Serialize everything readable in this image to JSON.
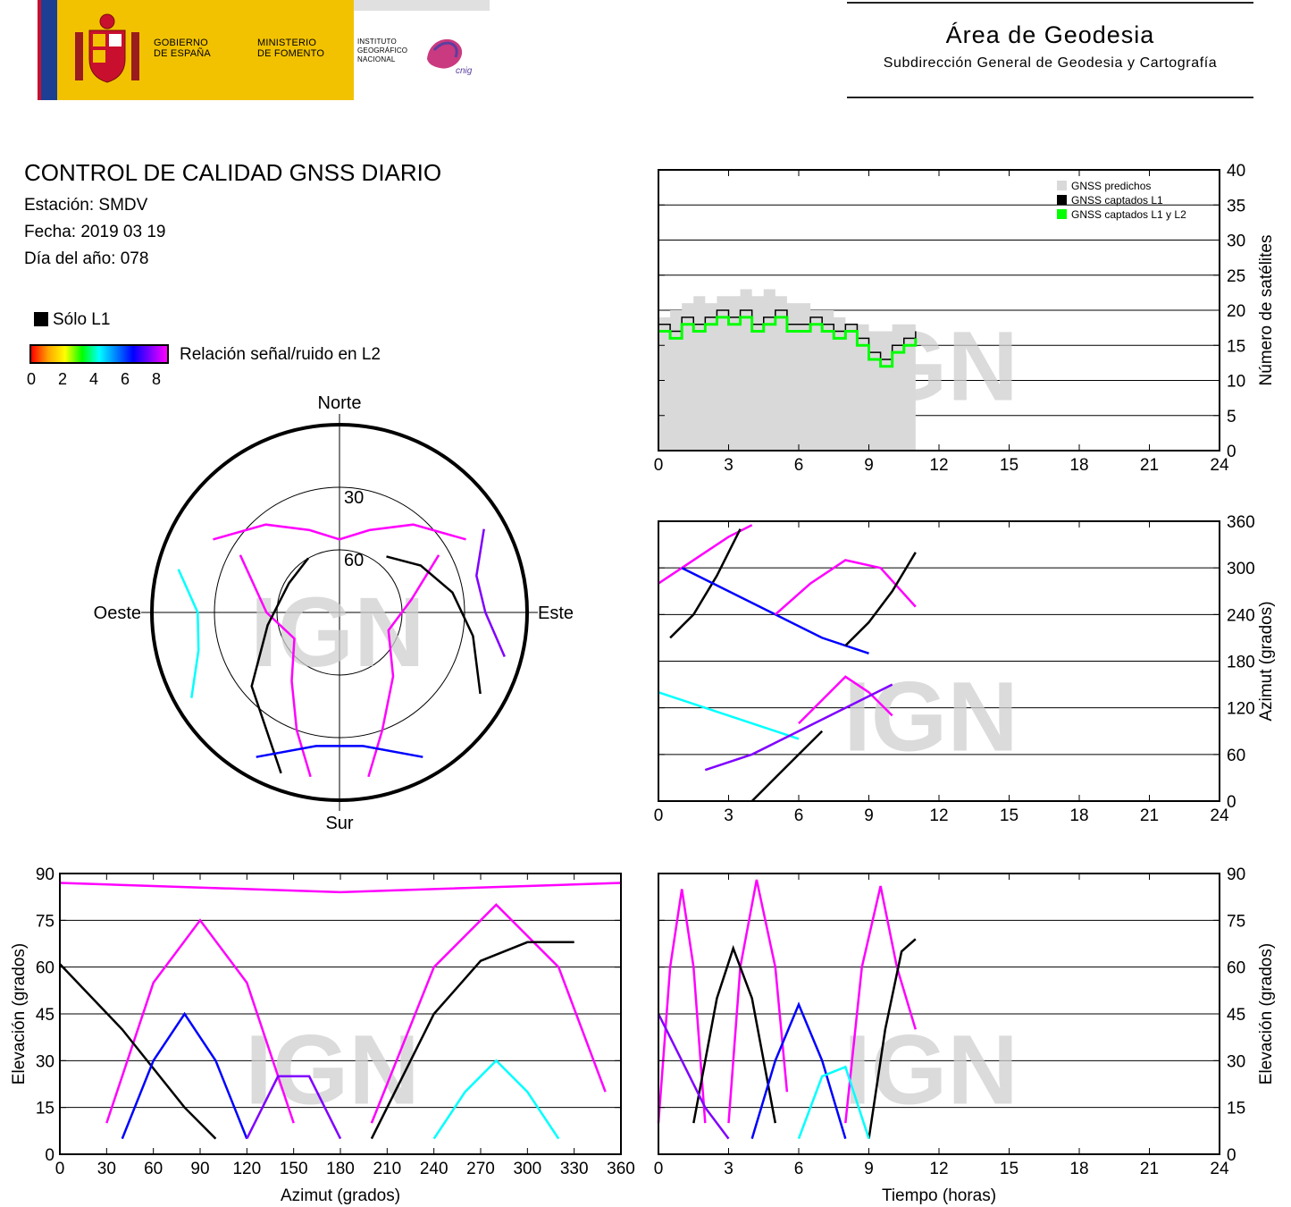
{
  "header": {
    "gov_text": [
      "GOBIERNO",
      "DE ESPAÑA"
    ],
    "ministry_text": [
      "MINISTERIO",
      "DE FOMENTO"
    ],
    "institute_text": [
      "INSTITUTO",
      "GEOGRÁFICO",
      "NACIONAL"
    ],
    "cnig": "cnig",
    "area_title": "Área de Geodesia",
    "area_subtitle": "Subdirección General de Geodesia y Cartografía"
  },
  "info": {
    "title": "CONTROL DE CALIDAD GNSS DIARIO",
    "station": "Estación: SMDV",
    "date": "Fecha: 2019 03 19",
    "doy": "Día del año: 078"
  },
  "legend": {
    "l1_only": "Sólo L1",
    "snr": "Relación señal/ruido en L2",
    "snr_ticks": [
      "0",
      "2",
      "4",
      "6",
      "8"
    ],
    "colors": [
      "#ff0000",
      "#ffa500",
      "#ffff00",
      "#00ff00",
      "#00ffff",
      "#0080ff",
      "#0000ff",
      "#8000ff",
      "#ff00ff"
    ]
  },
  "watermark": "IGN",
  "colors": {
    "l1": "#000000",
    "l1l2": "#00ff00",
    "predicted": "#d9d9d9",
    "track": "#ff00ff"
  },
  "chart_data": [
    {
      "id": "skyplot",
      "type": "scatter",
      "labels": {
        "north": "Norte",
        "south": "Sur",
        "east": "Este",
        "west": "Oeste"
      },
      "rings": [
        "30",
        "60"
      ],
      "tracks": [
        {
          "color": "#ff00ff",
          "az": [
            300,
            320,
            340,
            0,
            20,
            40,
            60
          ],
          "el": [
            20,
            35,
            48,
            55,
            48,
            35,
            20
          ]
        },
        {
          "color": "#ff00ff",
          "az": [
            190,
            200,
            215,
            240,
            270,
            300
          ],
          "el": [
            10,
            30,
            50,
            65,
            55,
            35
          ]
        },
        {
          "color": "#ff00ff",
          "az": [
            170,
            160,
            140,
            110,
            80,
            60
          ],
          "el": [
            10,
            30,
            50,
            65,
            55,
            35
          ]
        },
        {
          "color": "#000000",
          "az": [
            200,
            230,
            260,
            300,
            330
          ],
          "el": [
            8,
            35,
            55,
            62,
            60
          ]
        },
        {
          "color": "#000000",
          "az": [
            120,
            100,
            80,
            60,
            40
          ],
          "el": [
            12,
            25,
            35,
            45,
            55
          ]
        },
        {
          "color": "#0000ff",
          "az": [
            150,
            170,
            190,
            210
          ],
          "el": [
            10,
            25,
            25,
            10
          ]
        },
        {
          "color": "#00ffff",
          "az": [
            240,
            255,
            270,
            285
          ],
          "el": [
            8,
            20,
            22,
            10
          ]
        },
        {
          "color": "#8000ff",
          "az": [
            60,
            75,
            90,
            105
          ],
          "el": [
            10,
            22,
            20,
            8
          ]
        }
      ]
    },
    {
      "id": "satellite-count",
      "type": "line",
      "xlabel": "",
      "ylabel": "Número de satélites",
      "xlim": [
        0,
        24
      ],
      "ylim": [
        0,
        40
      ],
      "xticks": [
        0,
        3,
        6,
        9,
        12,
        15,
        18,
        21,
        24
      ],
      "yticks": [
        0,
        5,
        10,
        15,
        20,
        25,
        30,
        35,
        40
      ],
      "legend": [
        "GNSS predichos",
        "GNSS captados L1",
        "GNSS captados L1 y L2"
      ],
      "series": [
        {
          "name": "GNSS predichos",
          "x": [
            0,
            0.5,
            1,
            1.5,
            2,
            2.5,
            3,
            3.5,
            4,
            4.5,
            5,
            5.5,
            6,
            6.5,
            7,
            7.5,
            8,
            8.5,
            9,
            9.5,
            10,
            10.5,
            11
          ],
          "y": [
            19,
            20,
            21,
            22,
            21,
            22,
            22,
            23,
            22,
            23,
            22,
            21,
            21,
            20,
            20,
            19,
            18,
            18,
            17,
            17,
            18,
            18,
            18
          ]
        },
        {
          "name": "GNSS captados L1",
          "x": [
            0,
            0.5,
            1,
            1.5,
            2,
            2.5,
            3,
            3.5,
            4,
            4.5,
            5,
            5.5,
            6,
            6.5,
            7,
            7.5,
            8,
            8.5,
            9,
            9.5,
            10,
            10.5,
            11
          ],
          "y": [
            18,
            17,
            19,
            18,
            19,
            20,
            19,
            20,
            18,
            19,
            20,
            18,
            18,
            19,
            18,
            17,
            18,
            16,
            14,
            13,
            15,
            16,
            17
          ]
        },
        {
          "name": "GNSS captados L1 y L2",
          "x": [
            0,
            0.5,
            1,
            1.5,
            2,
            2.5,
            3,
            3.5,
            4,
            4.5,
            5,
            5.5,
            6,
            6.5,
            7,
            7.5,
            8,
            8.5,
            9,
            9.5,
            10,
            10.5,
            11
          ],
          "y": [
            17,
            16,
            18,
            17,
            18,
            19,
            18,
            19,
            17,
            18,
            19,
            17,
            17,
            18,
            17,
            16,
            17,
            15,
            13,
            12,
            14,
            15,
            16
          ]
        }
      ]
    },
    {
      "id": "azimuth-time",
      "type": "scatter",
      "ylabel": "Azimut (grados)",
      "xlim": [
        0,
        24
      ],
      "ylim": [
        0,
        360
      ],
      "xticks": [
        0,
        3,
        6,
        9,
        12,
        15,
        18,
        21,
        24
      ],
      "yticks": [
        0,
        60,
        120,
        180,
        240,
        300,
        360
      ],
      "tracks": [
        {
          "color": "#ff00ff",
          "x": [
            0,
            1,
            2,
            3,
            4
          ],
          "y": [
            280,
            300,
            320,
            340,
            355
          ]
        },
        {
          "color": "#000000",
          "x": [
            0.5,
            1.5,
            2.5,
            3.5
          ],
          "y": [
            210,
            240,
            290,
            350
          ]
        },
        {
          "color": "#000000",
          "x": [
            4,
            5,
            6,
            7
          ],
          "y": [
            0,
            30,
            60,
            90
          ]
        },
        {
          "color": "#0000ff",
          "x": [
            1,
            3,
            5,
            7,
            9
          ],
          "y": [
            300,
            270,
            240,
            210,
            190
          ]
        },
        {
          "color": "#ff00ff",
          "x": [
            5,
            6.5,
            8,
            9.5,
            11
          ],
          "y": [
            240,
            280,
            310,
            300,
            250
          ]
        },
        {
          "color": "#00ffff",
          "x": [
            0,
            2,
            4,
            6
          ],
          "y": [
            140,
            120,
            100,
            80
          ]
        },
        {
          "color": "#ff00ff",
          "x": [
            6,
            7,
            8,
            9,
            10
          ],
          "y": [
            100,
            130,
            160,
            140,
            110
          ]
        },
        {
          "color": "#8000ff",
          "x": [
            2,
            4,
            6,
            8,
            10
          ],
          "y": [
            40,
            60,
            90,
            120,
            150
          ]
        },
        {
          "color": "#000000",
          "x": [
            8,
            9,
            10,
            11
          ],
          "y": [
            200,
            230,
            270,
            320
          ]
        }
      ]
    },
    {
      "id": "elevation-azimuth",
      "type": "scatter",
      "xlabel": "Azimut (grados)",
      "ylabel": "Elevación (grados)",
      "xlim": [
        0,
        360
      ],
      "ylim": [
        0,
        90
      ],
      "xticks": [
        0,
        30,
        60,
        90,
        120,
        150,
        180,
        210,
        240,
        270,
        300,
        330,
        360
      ],
      "yticks": [
        0,
        15,
        30,
        45,
        60,
        75,
        90
      ],
      "tracks": [
        {
          "color": "#ff00ff",
          "x": [
            0,
            60,
            120,
            180,
            240,
            300,
            360
          ],
          "y": [
            87,
            86,
            85,
            84,
            85,
            86,
            87
          ]
        },
        {
          "color": "#ff00ff",
          "x": [
            30,
            60,
            90,
            120,
            150
          ],
          "y": [
            10,
            55,
            75,
            55,
            10
          ]
        },
        {
          "color": "#ff00ff",
          "x": [
            200,
            240,
            280,
            320,
            350
          ],
          "y": [
            10,
            60,
            80,
            60,
            20
          ]
        },
        {
          "color": "#000000",
          "x": [
            0,
            40,
            80,
            100
          ],
          "y": [
            61,
            40,
            15,
            5
          ]
        },
        {
          "color": "#000000",
          "x": [
            200,
            240,
            270,
            300,
            330
          ],
          "y": [
            5,
            45,
            62,
            68,
            68
          ]
        },
        {
          "color": "#0000ff",
          "x": [
            40,
            60,
            80,
            100,
            120
          ],
          "y": [
            5,
            30,
            45,
            30,
            5
          ]
        },
        {
          "color": "#00ffff",
          "x": [
            240,
            260,
            280,
            300,
            320
          ],
          "y": [
            5,
            20,
            30,
            20,
            5
          ]
        },
        {
          "color": "#8000ff",
          "x": [
            120,
            140,
            160,
            180
          ],
          "y": [
            5,
            25,
            25,
            5
          ]
        }
      ]
    },
    {
      "id": "elevation-time",
      "type": "line",
      "xlabel": "Tiempo (horas)",
      "ylabel": "Elevación (grados)",
      "xlim": [
        0,
        24
      ],
      "ylim": [
        0,
        90
      ],
      "xticks": [
        0,
        3,
        6,
        9,
        12,
        15,
        18,
        21,
        24
      ],
      "yticks": [
        0,
        15,
        30,
        45,
        60,
        75,
        90
      ],
      "tracks": [
        {
          "color": "#ff00ff",
          "x": [
            0,
            0.5,
            1,
            1.5,
            2
          ],
          "y": [
            10,
            60,
            85,
            60,
            10
          ]
        },
        {
          "color": "#ff00ff",
          "x": [
            3,
            3.5,
            4.2,
            5,
            5.5
          ],
          "y": [
            10,
            60,
            88,
            60,
            20
          ]
        },
        {
          "color": "#ff00ff",
          "x": [
            8,
            8.7,
            9.5,
            10.2,
            11
          ],
          "y": [
            10,
            60,
            86,
            60,
            40
          ]
        },
        {
          "color": "#000000",
          "x": [
            1.5,
            2.5,
            3.2,
            4,
            5
          ],
          "y": [
            10,
            50,
            66,
            50,
            10
          ]
        },
        {
          "color": "#000000",
          "x": [
            9,
            9.7,
            10.4,
            11
          ],
          "y": [
            5,
            40,
            65,
            69
          ]
        },
        {
          "color": "#0000ff",
          "x": [
            4,
            5,
            6,
            7,
            8
          ],
          "y": [
            5,
            30,
            48,
            30,
            5
          ]
        },
        {
          "color": "#00ffff",
          "x": [
            6,
            7,
            8,
            9
          ],
          "y": [
            5,
            25,
            28,
            5
          ]
        },
        {
          "color": "#8000ff",
          "x": [
            0,
            1,
            2,
            3
          ],
          "y": [
            45,
            30,
            15,
            5
          ]
        }
      ]
    }
  ]
}
